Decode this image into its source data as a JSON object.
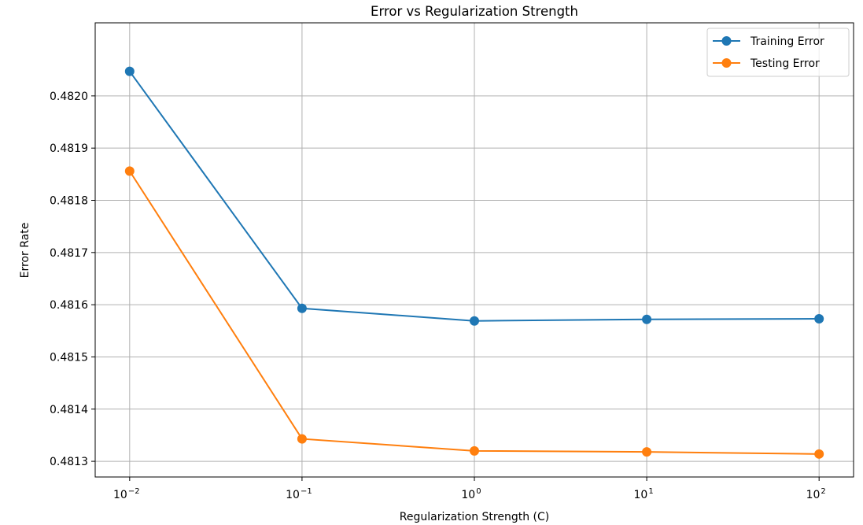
{
  "chart_data": {
    "type": "line",
    "title": "Error vs Regularization Strength",
    "xlabel": "Regularization Strength (C)",
    "ylabel": "Error Rate",
    "x_scale": "log",
    "x": [
      0.01,
      0.1,
      1,
      10,
      100
    ],
    "x_ticks": [
      {
        "base": "10",
        "exp": "−2"
      },
      {
        "base": "10",
        "exp": "−1"
      },
      {
        "base": "10",
        "exp": "0"
      },
      {
        "base": "10",
        "exp": "1"
      },
      {
        "base": "10",
        "exp": "2"
      }
    ],
    "y_ticks": [
      "0.4813",
      "0.4814",
      "0.4815",
      "0.4816",
      "0.4817",
      "0.4818",
      "0.4819",
      "0.4820"
    ],
    "ylim": [
      0.48127,
      0.48214
    ],
    "grid": true,
    "legend_position": "top-right",
    "series": [
      {
        "name": "Training Error",
        "color": "#1f77b4",
        "marker": "circle",
        "values": [
          0.482047,
          0.481593,
          0.481569,
          0.481572,
          0.481573
        ]
      },
      {
        "name": "Testing Error",
        "color": "#ff7f0e",
        "marker": "circle",
        "values": [
          0.481856,
          0.481343,
          0.48132,
          0.481318,
          0.481314
        ]
      }
    ]
  }
}
